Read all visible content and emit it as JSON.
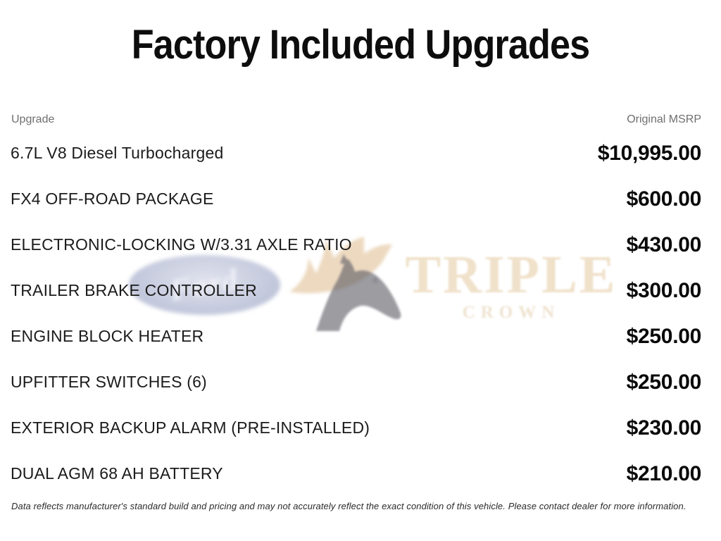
{
  "page": {
    "title": "Factory Included Upgrades",
    "disclaimer": "Data reflects manufacturer's standard build and pricing and may not accurately reflect the exact condition of this vehicle. Please contact dealer for more information."
  },
  "table": {
    "columns": {
      "upgrade": "Upgrade",
      "msrp": "Original MSRP"
    },
    "rows": [
      {
        "upgrade": "6.7L V8 Diesel Turbocharged",
        "msrp": "$10,995.00"
      },
      {
        "upgrade": "FX4 OFF-ROAD PACKAGE",
        "msrp": "$600.00"
      },
      {
        "upgrade": "ELECTRONIC-LOCKING W/3.31 AXLE RATIO",
        "msrp": "$430.00"
      },
      {
        "upgrade": "TRAILER BRAKE CONTROLLER",
        "msrp": "$300.00"
      },
      {
        "upgrade": "ENGINE BLOCK HEATER",
        "msrp": "$250.00"
      },
      {
        "upgrade": "UPFITTER SWITCHES (6)",
        "msrp": "$250.00"
      },
      {
        "upgrade": "EXTERIOR BACKUP ALARM (PRE-INSTALLED)",
        "msrp": "$230.00"
      },
      {
        "upgrade": "DUAL AGM 68 AH BATTERY",
        "msrp": "$210.00"
      }
    ]
  },
  "watermark": {
    "ford_label": "Ford",
    "brand_line1": "TRIPLE",
    "brand_line2": "CROWN",
    "colors": {
      "ford_blue": "#7681ad",
      "gold": "#debb8d",
      "horse_gray": "#55555f",
      "brand_tan": "#e4c99e"
    }
  }
}
